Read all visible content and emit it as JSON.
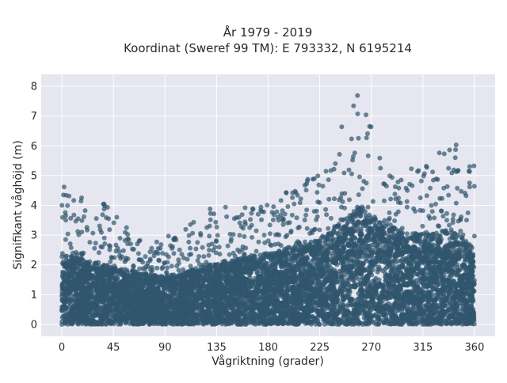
{
  "chart_data": {
    "type": "scatter",
    "title": "År 1979 - 2019",
    "subtitle": "Koordinat (Sweref 99 TM): E 793332, N 6195214",
    "xlabel": "Vågriktning (grader)",
    "ylabel": "Signifikant våghöjd (m)",
    "xlim": [
      -18,
      378
    ],
    "ylim": [
      -0.4,
      8.4
    ],
    "x_ticks": [
      0,
      45,
      90,
      135,
      180,
      225,
      270,
      315,
      360
    ],
    "y_ticks": [
      0,
      1,
      2,
      3,
      4,
      5,
      6,
      7,
      8
    ],
    "grid": true,
    "legend": "none",
    "marker_color": "#30566e",
    "plot_background": "#e5e6ef",
    "series": [
      {
        "values_note_free": true,
        "upper_envelope": {
          "x": [
            0,
            10,
            20,
            30,
            45,
            60,
            75,
            90,
            105,
            120,
            135,
            150,
            165,
            180,
            195,
            210,
            225,
            240,
            250,
            258,
            265,
            275,
            290,
            305,
            320,
            335,
            345,
            352,
            360
          ],
          "y": [
            4.6,
            5.0,
            4.5,
            4.3,
            3.8,
            3.1,
            2.8,
            3.0,
            3.2,
            3.6,
            4.1,
            3.9,
            4.0,
            4.2,
            4.6,
            4.9,
            5.2,
            6.4,
            7.3,
            7.9,
            7.4,
            6.1,
            5.1,
            5.3,
            5.4,
            6.0,
            6.5,
            6.3,
            5.6
          ]
        },
        "density_center": {
          "x": [
            0,
            45,
            90,
            135,
            180,
            225,
            260,
            300,
            340,
            360
          ],
          "y": [
            1.5,
            1.2,
            1.0,
            1.3,
            1.5,
            1.8,
            2.5,
            1.9,
            2.0,
            1.6
          ]
        },
        "min_y": 0.0
      }
    ]
  }
}
